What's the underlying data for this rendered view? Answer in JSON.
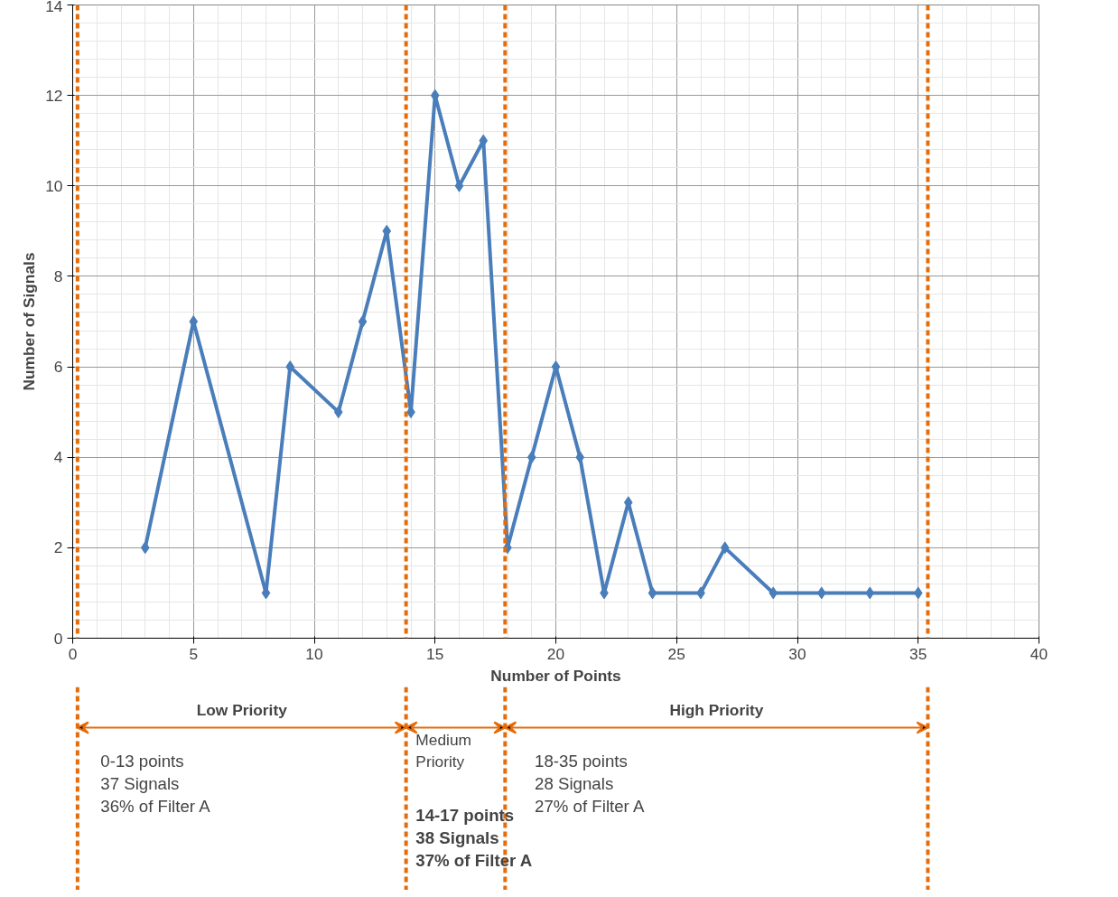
{
  "chart_data": {
    "type": "line",
    "xlabel": "Number of Points",
    "ylabel": "Number of Signals",
    "x": [
      3,
      5,
      8,
      9,
      11,
      12,
      13,
      14,
      15,
      16,
      17,
      18,
      19,
      20,
      21,
      22,
      23,
      24,
      26,
      27,
      29,
      31,
      33,
      35
    ],
    "series": [
      {
        "color": "#4a7ebb",
        "values": [
          2,
          7,
          1,
          6,
          5,
          7,
          9,
          5,
          12,
          10,
          11,
          2,
          4,
          6,
          4,
          1,
          3,
          1,
          1,
          2,
          1,
          1,
          1,
          1
        ]
      }
    ],
    "xlim": [
      0,
      40
    ],
    "xticks": [
      0,
      5,
      10,
      15,
      20,
      25,
      30,
      35,
      40
    ],
    "ylim": [
      0,
      14
    ],
    "yticks": [
      0,
      2,
      4,
      6,
      8,
      10,
      12,
      14
    ],
    "grid": true,
    "marker": "diamond",
    "line_style": "solid",
    "ref_lines": [
      {
        "axis": "x",
        "value": 0.2,
        "color": "#e46c0a",
        "line_style": "dashed"
      },
      {
        "axis": "x",
        "value": 13.8,
        "color": "#e46c0a",
        "line_style": "dashed"
      },
      {
        "axis": "x",
        "value": 17.9,
        "color": "#e46c0a",
        "line_style": "dashed"
      },
      {
        "axis": "x",
        "value": 35.4,
        "color": "#e46c0a",
        "line_style": "dashed"
      }
    ],
    "annotations": [
      "Low Priority",
      "Medium Priority",
      "High Priority",
      "0-13 points\n37 Signals\n36% of Filter A",
      "14-17 points\n38 Signals\n37% of Filter A",
      "18-35 points\n28 Signals\n27% of Filter A"
    ]
  }
}
